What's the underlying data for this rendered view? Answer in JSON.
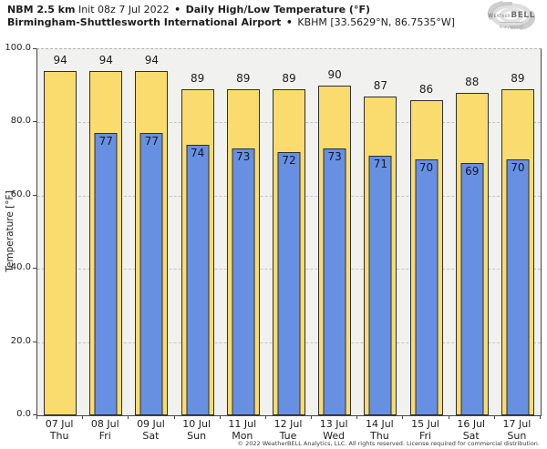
{
  "header": {
    "model": "NBM 2.5 km",
    "init": "Init 08z 7 Jul 2022",
    "sep": "•",
    "product": "Daily High/Low Temperature (°F)",
    "station": "Birmingham-Shuttlesworth International Airport",
    "station_meta": "KBHM [33.5629°N, 86.7535°W]"
  },
  "logo": {
    "brand_weather": "Weather",
    "brand_bell": "BELL",
    "subtext": "Analytics LLC"
  },
  "chart_data": {
    "type": "bar",
    "title": "NBM 2.5 km Init 08z 7 Jul 2022 • Daily High/Low Temperature (°F)",
    "subtitle": "Birmingham-Shuttlesworth International Airport • KBHM [33.5629°N, 86.7535°W]",
    "ylabel": "Temperature [°F]",
    "xlabel": "",
    "ylim": [
      0,
      100
    ],
    "yticks": [
      0,
      20,
      40,
      60,
      80,
      100
    ],
    "ytick_labels": [
      "0.0",
      "20.0",
      "40.0",
      "60.0",
      "80.0",
      "100.0"
    ],
    "grid": {
      "horizontal": true,
      "style": "dashed"
    },
    "legend": "none",
    "categories": [
      "07 Jul",
      "08 Jul",
      "09 Jul",
      "10 Jul",
      "11 Jul",
      "12 Jul",
      "13 Jul",
      "14 Jul",
      "15 Jul",
      "16 Jul",
      "17 Jul"
    ],
    "weekdays": [
      "Thu",
      "Fri",
      "Sat",
      "Sun",
      "Mon",
      "Tue",
      "Wed",
      "Thu",
      "Fri",
      "Sat",
      "Sun"
    ],
    "series": [
      {
        "name": "Daily High",
        "color": "#fadc6e",
        "values": [
          94,
          94,
          94,
          89,
          89,
          89,
          90,
          87,
          86,
          88,
          89
        ]
      },
      {
        "name": "Daily Low",
        "color": "#6890e2",
        "values": [
          null,
          77,
          77,
          74,
          73,
          72,
          73,
          71,
          70,
          69,
          70
        ]
      }
    ]
  },
  "colors": {
    "high_bar": "#fadc6e",
    "low_bar": "#6890e2",
    "bar_border": "#2e2e2e",
    "plot_bg": "#f1f1ef",
    "grid": "#c4c4c4",
    "axis": "#444444",
    "logo_gray": "#c2c2c2"
  },
  "footer": {
    "copyright": "© 2022 WeatherBELL Analytics, LLC. All rights reserved. License required for commercial distribution."
  }
}
